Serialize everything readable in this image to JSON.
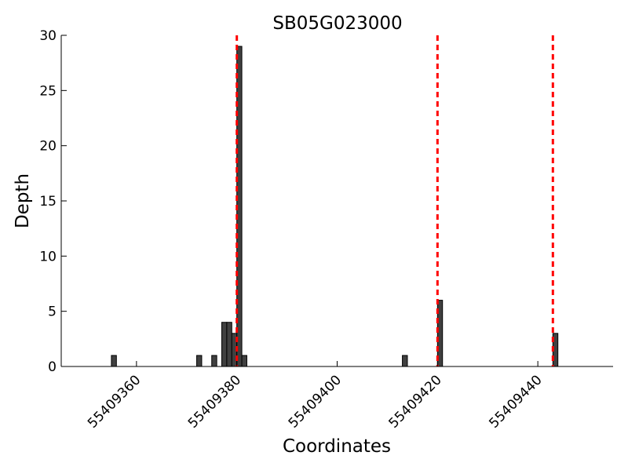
{
  "chart_data": {
    "type": "bar",
    "title": "SB05G023000",
    "xlabel": "Coordinates",
    "ylabel": "Depth",
    "xlim": [
      55409345,
      55409455
    ],
    "ylim": [
      0,
      30
    ],
    "x_ticks": [
      55409360,
      55409380,
      55409400,
      55409420,
      55409440
    ],
    "y_ticks": [
      0,
      5,
      10,
      15,
      20,
      25,
      30
    ],
    "grid": false,
    "legend": "none",
    "bar_width": 1,
    "bar_color": "#404040",
    "bar_edge_color": "#000000",
    "marker_color": "#ff0000",
    "markers": [
      55409380,
      55409420,
      55409443
    ],
    "bars": [
      {
        "x": 55409355,
        "y": 1
      },
      {
        "x": 55409372,
        "y": 1
      },
      {
        "x": 55409375,
        "y": 1
      },
      {
        "x": 55409377,
        "y": 4
      },
      {
        "x": 55409378,
        "y": 4
      },
      {
        "x": 55409379,
        "y": 3
      },
      {
        "x": 55409380,
        "y": 29
      },
      {
        "x": 55409381,
        "y": 1
      },
      {
        "x": 55409413,
        "y": 1
      },
      {
        "x": 55409420,
        "y": 6
      },
      {
        "x": 55409443,
        "y": 3
      }
    ]
  }
}
